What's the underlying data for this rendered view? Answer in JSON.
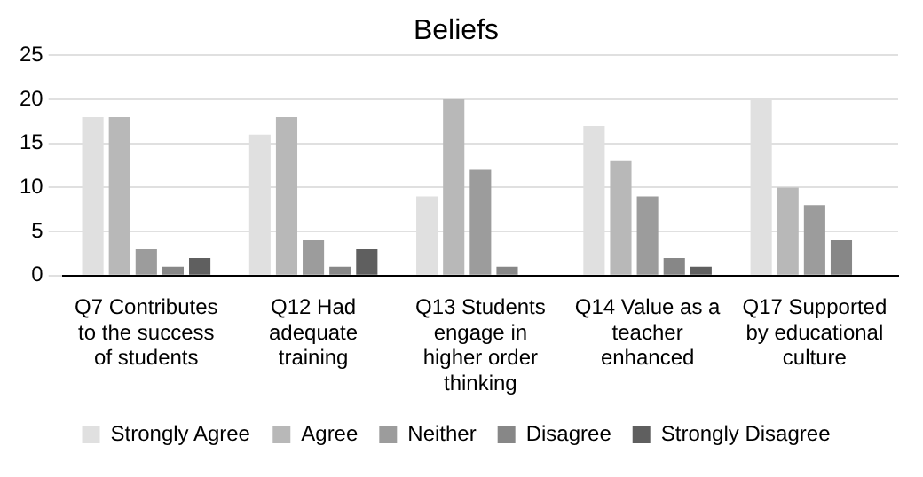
{
  "chart_data": {
    "type": "bar",
    "title": "Beliefs",
    "categories": [
      "Q7 Contributes to the success of students",
      "Q12 Had adequate training",
      "Q13 Students engage in higher order thinking",
      "Q14 Value as a teacher enhanced",
      "Q17 Supported by educational culture"
    ],
    "series": [
      {
        "name": "Strongly Agree",
        "color": "#e0e0e0",
        "values": [
          18,
          16,
          9,
          17,
          20
        ]
      },
      {
        "name": "Agree",
        "color": "#b8b8b8",
        "values": [
          18,
          18,
          20,
          13,
          10
        ]
      },
      {
        "name": "Neither",
        "color": "#9c9c9c",
        "values": [
          3,
          4,
          12,
          9,
          8
        ]
      },
      {
        "name": "Disagree",
        "color": "#878787",
        "values": [
          1,
          1,
          1,
          2,
          4
        ]
      },
      {
        "name": "Strongly Disagree",
        "color": "#5f5f5f",
        "values": [
          2,
          3,
          0,
          1,
          0
        ]
      }
    ],
    "ylim": [
      0,
      25
    ],
    "yticks": [
      0,
      5,
      10,
      15,
      20,
      25
    ],
    "grid": "y",
    "legend": "bottom"
  }
}
